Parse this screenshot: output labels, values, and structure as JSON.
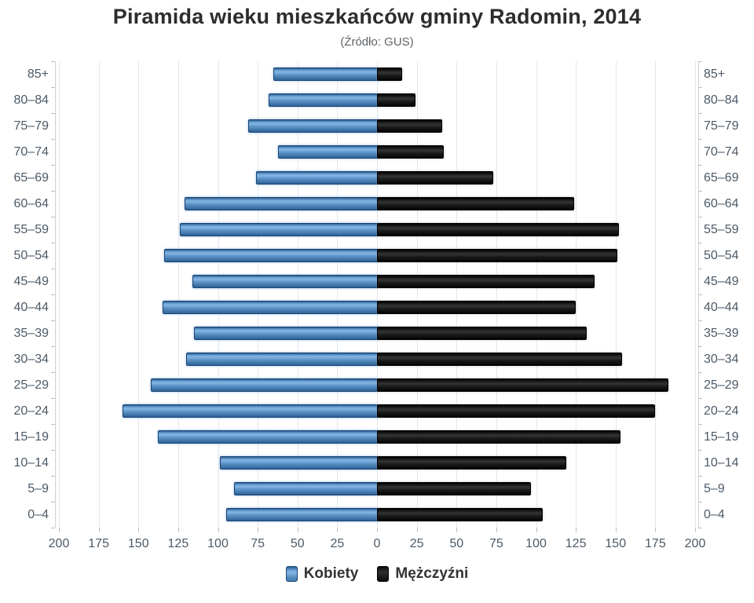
{
  "header": {
    "title": "Piramida wieku mieszkańców gminy Radomin, 2014",
    "subtitle": "(Źródło: GUS)"
  },
  "legend": {
    "items": [
      {
        "label": "Kobiety",
        "color": "#5e93c8"
      },
      {
        "label": "Mężczyźni",
        "color": "#141414"
      }
    ]
  },
  "axis": {
    "tick_labels": [
      "200",
      "175",
      "150",
      "125",
      "100",
      "75",
      "50",
      "25",
      "0",
      "25",
      "50",
      "75",
      "100",
      "125",
      "150",
      "175",
      "200"
    ]
  },
  "colors": {
    "kobiety": "#5e93c8",
    "mezczyzni": "#141414",
    "grid": "#e4e8eb",
    "axis_text": "#4c5a67"
  },
  "chart_data": {
    "type": "bar",
    "subtype": "population-pyramid",
    "title": "Piramida wieku mieszkańców gminy Radomin, 2014",
    "subtitle": "(Źródło: GUS)",
    "categories": [
      "85+",
      "80–84",
      "75–79",
      "70–74",
      "65–69",
      "60–64",
      "55–59",
      "50–54",
      "45–49",
      "40–44",
      "35–39",
      "30–34",
      "25–29",
      "20–24",
      "15–19",
      "10–14",
      "5–9",
      "0–4"
    ],
    "series": [
      {
        "name": "Kobiety",
        "side": "left",
        "color": "#5e93c8",
        "values": [
          65,
          68,
          81,
          62,
          76,
          121,
          124,
          134,
          116,
          135,
          115,
          120,
          142,
          160,
          138,
          99,
          90,
          95
        ]
      },
      {
        "name": "Mężczyźni",
        "side": "right",
        "color": "#141414",
        "values": [
          15,
          23,
          40,
          41,
          72,
          123,
          151,
          150,
          136,
          124,
          131,
          153,
          182,
          174,
          152,
          118,
          96,
          103
        ]
      }
    ],
    "xlim": [
      0,
      200
    ],
    "x_tick_step": 25,
    "grid": true,
    "legend_position": "bottom"
  }
}
